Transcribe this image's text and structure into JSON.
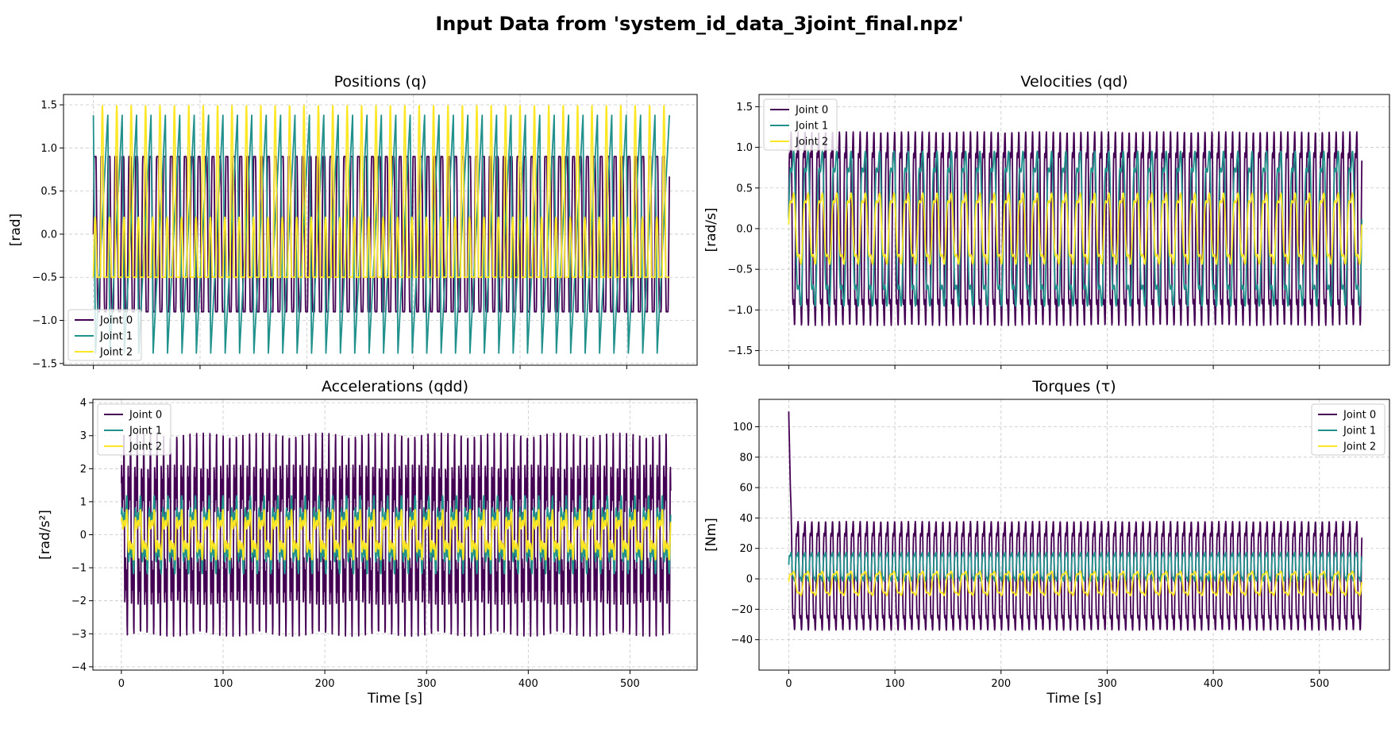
{
  "figure": {
    "title": "Input Data from 'system_id_data_3joint_final.npz'"
  },
  "series_names": [
    "Joint 0",
    "Joint 1",
    "Joint 2"
  ],
  "colors": {
    "Joint 0": "#440154",
    "Joint 1": "#21918c",
    "Joint 2": "#fde725"
  },
  "chart_data": [
    {
      "type": "line",
      "title": "Positions (q)",
      "xlabel": "",
      "ylabel": "[rad]",
      "xlim": [
        -28,
        566
      ],
      "ylim": [
        -1.52,
        1.62
      ],
      "xticks": [
        0,
        100,
        200,
        300,
        400,
        500
      ],
      "show_xticklabels": false,
      "yticks": [
        -1.5,
        -1.0,
        -0.5,
        0.0,
        0.5,
        1.0,
        1.5
      ],
      "ytick_labels": [
        "−1.5",
        "−1.0",
        "−0.5",
        "0.0",
        "0.5",
        "1.0",
        "1.5"
      ],
      "grid": true,
      "legend_position": "lower-left",
      "series": [
        {
          "name": "Joint 0",
          "amplitude": 0.9,
          "offset": 0.0,
          "period": 6.5,
          "shape": "clipped-sine",
          "x_range": [
            0,
            540
          ]
        },
        {
          "name": "Joint 1",
          "amplitude": 1.38,
          "offset": 0.0,
          "period": 13.5,
          "shape": "sawtooth",
          "x_range": [
            0,
            540
          ]
        },
        {
          "name": "Joint 2",
          "min": -0.5,
          "max": 1.5,
          "period": 13.5,
          "shape": "pulse",
          "x_range": [
            0,
            540
          ]
        }
      ]
    },
    {
      "type": "line",
      "title": "Velocities (qd)",
      "xlabel": "",
      "ylabel": "[rad/s]",
      "xlim": [
        -28,
        566
      ],
      "ylim": [
        -1.68,
        1.65
      ],
      "xticks": [
        0,
        100,
        200,
        300,
        400,
        500
      ],
      "show_xticklabels": false,
      "yticks": [
        -1.5,
        -1.0,
        -0.5,
        0.0,
        0.5,
        1.0,
        1.5
      ],
      "ytick_labels": [
        "−1.5",
        "−1.0",
        "−0.5",
        "0.0",
        "0.5",
        "1.0",
        "1.5"
      ],
      "grid": true,
      "legend_position": "upper-left",
      "series": [
        {
          "name": "Joint 0",
          "amplitude": 1.5,
          "offset": 0.0,
          "period": 6.5,
          "shape": "oscillation",
          "x_range": [
            0,
            540
          ]
        },
        {
          "name": "Joint 1",
          "amplitude": 1.2,
          "offset": 0.0,
          "period": 13.5,
          "shape": "oscillation",
          "x_range": [
            0,
            540
          ]
        },
        {
          "name": "Joint 2",
          "amplitude": 0.55,
          "offset": 0.0,
          "period": 13.5,
          "shape": "oscillation",
          "x_range": [
            0,
            540
          ]
        }
      ]
    },
    {
      "type": "line",
      "title": "Accelerations (qdd)",
      "xlabel": "Time [s]",
      "ylabel": "[rad/s²]",
      "xlim": [
        -28,
        566
      ],
      "ylim": [
        -4.1,
        4.1
      ],
      "xticks": [
        0,
        100,
        200,
        300,
        400,
        500
      ],
      "show_xticklabels": true,
      "yticks": [
        -4,
        -3,
        -2,
        -1,
        0,
        1,
        2,
        3,
        4
      ],
      "ytick_labels": [
        "−4",
        "−3",
        "−2",
        "−1",
        "0",
        "1",
        "2",
        "3",
        "4"
      ],
      "grid": true,
      "legend_position": "upper-left",
      "series": [
        {
          "name": "Joint 0",
          "amplitude": 3.6,
          "offset": 0.0,
          "period": 6.5,
          "shape": "spiky",
          "x_range": [
            0,
            540
          ]
        },
        {
          "name": "Joint 1",
          "amplitude": 1.4,
          "offset": 0.0,
          "period": 13.5,
          "shape": "spiky",
          "x_range": [
            0,
            540
          ]
        },
        {
          "name": "Joint 2",
          "amplitude": 0.9,
          "offset": 0.0,
          "period": 13.5,
          "shape": "spiky",
          "x_range": [
            0,
            540
          ]
        }
      ]
    },
    {
      "type": "line",
      "title": "Torques (τ)",
      "xlabel": "Time [s]",
      "ylabel": "[Nm]",
      "xlim": [
        -28,
        566
      ],
      "ylim": [
        -60,
        118
      ],
      "xticks": [
        0,
        100,
        200,
        300,
        400,
        500
      ],
      "show_xticklabels": true,
      "yticks": [
        -40,
        -20,
        0,
        20,
        40,
        60,
        80,
        100
      ],
      "ytick_labels": [
        "−40",
        "−20",
        "0",
        "20",
        "40",
        "60",
        "80",
        "100"
      ],
      "grid": true,
      "legend_position": "upper-right",
      "series": [
        {
          "name": "Joint 0",
          "amplitude": 45,
          "offset": 2.0,
          "period": 6.5,
          "shape": "oscillation",
          "initial_spike": 110,
          "x_range": [
            0,
            540
          ]
        },
        {
          "name": "Joint 1",
          "amplitude": 12,
          "offset": 8.0,
          "period": 6.5,
          "shape": "oscillation",
          "x_range": [
            0,
            540
          ]
        },
        {
          "name": "Joint 2",
          "amplitude": 10,
          "offset": -3.0,
          "period": 13.5,
          "shape": "oscillation",
          "x_range": [
            0,
            540
          ]
        }
      ]
    }
  ]
}
